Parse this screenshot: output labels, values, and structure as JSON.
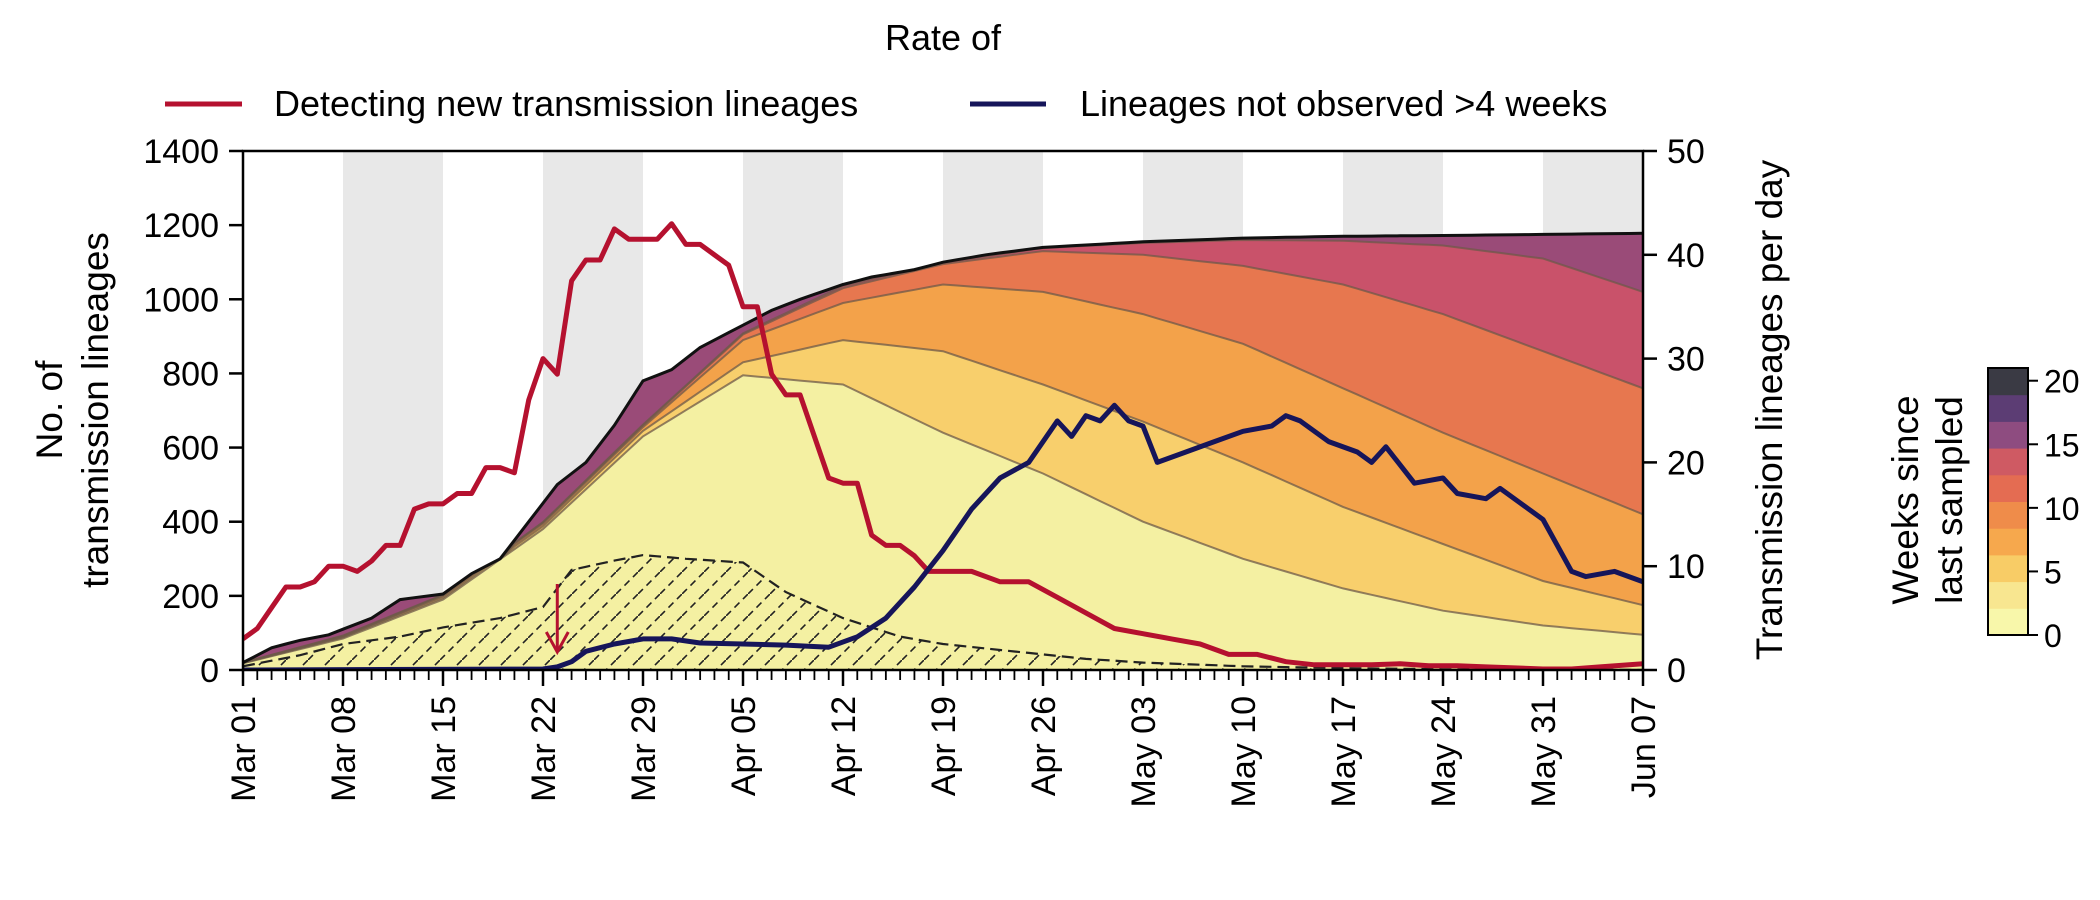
{
  "legend": {
    "heading": "Rate of",
    "items": [
      {
        "label": "Detecting new transmission lineages",
        "color": "#b5112f"
      },
      {
        "label": "Lineages not observed >4 weeks",
        "color": "#16155a"
      }
    ]
  },
  "colorbar": {
    "label_line1": "Weeks since",
    "label_line2": "last sampled",
    "ticks": [
      0,
      5,
      10,
      15,
      20
    ],
    "max": 21,
    "colors": [
      "#f8f7aa",
      "#f8e690",
      "#f8cc66",
      "#f6a84d",
      "#ef8c4a",
      "#e46c52",
      "#cf5a63",
      "#8e4c80",
      "#5c3d74",
      "#3a3a44"
    ]
  },
  "chart_data": {
    "type": "area",
    "x_tick_labels": [
      "Mar 01",
      "Mar 08",
      "Mar 15",
      "Mar 22",
      "Mar 29",
      "Apr 05",
      "Apr 12",
      "Apr 19",
      "Apr 26",
      "May 03",
      "May 10",
      "May 17",
      "May 24",
      "May 31",
      "Jun 07"
    ],
    "xlim": [
      "Mar 01",
      "Jun 07"
    ],
    "y_left": {
      "label_line1": "No. of",
      "label_line2": "transmission lineages",
      "ticks": [
        0,
        200,
        400,
        600,
        800,
        1000,
        1200,
        1400
      ],
      "range": [
        0,
        1400
      ]
    },
    "y_right": {
      "label": "Transmission lineages per day",
      "ticks": [
        0,
        10,
        20,
        30,
        40,
        50
      ],
      "range": [
        0,
        50
      ]
    },
    "weekly_shading": true,
    "total_lineages": {
      "x": [
        "Mar 01",
        "Mar 03",
        "Mar 05",
        "Mar 07",
        "Mar 10",
        "Mar 12",
        "Mar 15",
        "Mar 17",
        "Mar 19",
        "Mar 21",
        "Mar 23",
        "Mar 25",
        "Mar 27",
        "Mar 29",
        "Mar 31",
        "Apr 02",
        "Apr 04",
        "Apr 07",
        "Apr 09",
        "Apr 12",
        "Apr 14",
        "Apr 17",
        "Apr 19",
        "Apr 22",
        "Apr 26",
        "May 03",
        "May 10",
        "May 17",
        "May 24",
        "May 31",
        "Jun 07"
      ],
      "y": [
        20,
        60,
        80,
        95,
        140,
        190,
        205,
        260,
        300,
        400,
        500,
        560,
        660,
        780,
        810,
        870,
        910,
        970,
        1000,
        1040,
        1060,
        1080,
        1100,
        1120,
        1140,
        1155,
        1165,
        1170,
        1172,
        1175,
        1178
      ]
    },
    "age_bands": [
      {
        "weeks": 0,
        "x": [
          "Mar 01",
          "Mar 08",
          "Mar 15",
          "Mar 22",
          "Mar 29",
          "Apr 05",
          "Apr 12",
          "Apr 19",
          "Apr 26",
          "May 03",
          "May 10",
          "May 17",
          "May 24",
          "May 31",
          "Jun 07"
        ],
        "y": [
          18,
          85,
          190,
          380,
          630,
          795,
          770,
          640,
          530,
          400,
          300,
          220,
          160,
          120,
          95
        ]
      },
      {
        "weeks": 2,
        "x": [
          "Mar 01",
          "Mar 08",
          "Mar 15",
          "Mar 22",
          "Mar 29",
          "Apr 05",
          "Apr 12",
          "Apr 19",
          "Apr 26",
          "May 03",
          "May 10",
          "May 17",
          "May 24",
          "May 31",
          "Jun 07"
        ],
        "y": [
          19,
          88,
          195,
          388,
          645,
          830,
          890,
          860,
          770,
          670,
          560,
          440,
          340,
          240,
          175
        ]
      },
      {
        "weeks": 4,
        "x": [
          "Mar 01",
          "Mar 08",
          "Mar 15",
          "Mar 22",
          "Mar 29",
          "Apr 05",
          "Apr 12",
          "Apr 19",
          "Apr 26",
          "May 03",
          "May 10",
          "May 17",
          "May 24",
          "May 31",
          "Jun 07"
        ],
        "y": [
          20,
          90,
          200,
          395,
          655,
          890,
          990,
          1040,
          1020,
          960,
          880,
          760,
          640,
          530,
          420
        ]
      },
      {
        "weeks": 8,
        "x": [
          "Mar 01",
          "Mar 08",
          "Mar 15",
          "Mar 22",
          "Mar 29",
          "Apr 05",
          "Apr 12",
          "Apr 19",
          "Apr 26",
          "May 03",
          "May 10",
          "May 17",
          "May 24",
          "May 31",
          "Jun 07"
        ],
        "y": [
          20,
          92,
          202,
          398,
          660,
          905,
          1030,
          1095,
          1130,
          1120,
          1090,
          1040,
          960,
          860,
          760
        ]
      },
      {
        "weeks": 12,
        "x": [
          "Mar 01",
          "Mar 08",
          "Mar 15",
          "Mar 22",
          "Mar 29",
          "Apr 05",
          "Apr 12",
          "Apr 19",
          "Apr 26",
          "May 03",
          "May 10",
          "May 17",
          "May 24",
          "May 31",
          "Jun 07"
        ],
        "y": [
          20,
          93,
          203,
          399,
          662,
          908,
          1036,
          1100,
          1138,
          1152,
          1160,
          1158,
          1145,
          1110,
          1020
        ]
      }
    ],
    "hatched_region": {
      "x": [
        "Mar 01",
        "Mar 05",
        "Mar 08",
        "Mar 12",
        "Mar 15",
        "Mar 19",
        "Mar 22",
        "Mar 24",
        "Mar 27",
        "Mar 29",
        "Apr 01",
        "Apr 05",
        "Apr 08",
        "Apr 12",
        "Apr 16",
        "Apr 19",
        "Apr 24",
        "Apr 29",
        "May 03",
        "May 10",
        "May 17",
        "May 24",
        "May 31",
        "Jun 07"
      ],
      "y": [
        10,
        40,
        70,
        90,
        115,
        140,
        170,
        270,
        295,
        310,
        300,
        290,
        210,
        140,
        90,
        70,
        50,
        30,
        20,
        10,
        5,
        2,
        1,
        0
      ]
    },
    "series": [
      {
        "name": "Detecting new transmission lineages",
        "axis": "right",
        "color": "#b5112f",
        "x": [
          "Mar 01",
          "Mar 02",
          "Mar 03",
          "Mar 04",
          "Mar 05",
          "Mar 06",
          "Mar 07",
          "Mar 08",
          "Mar 09",
          "Mar 10",
          "Mar 11",
          "Mar 12",
          "Mar 13",
          "Mar 14",
          "Mar 15",
          "Mar 16",
          "Mar 17",
          "Mar 18",
          "Mar 19",
          "Mar 20",
          "Mar 21",
          "Mar 22",
          "Mar 23",
          "Mar 24",
          "Mar 25",
          "Mar 26",
          "Mar 27",
          "Mar 28",
          "Mar 29",
          "Mar 30",
          "Mar 31",
          "Apr 01",
          "Apr 02",
          "Apr 03",
          "Apr 04",
          "Apr 05",
          "Apr 06",
          "Apr 07",
          "Apr 08",
          "Apr 09",
          "Apr 10",
          "Apr 11",
          "Apr 12",
          "Apr 13",
          "Apr 14",
          "Apr 15",
          "Apr 16",
          "Apr 17",
          "Apr 18",
          "Apr 19",
          "Apr 21",
          "Apr 23",
          "Apr 25",
          "Apr 27",
          "Apr 29",
          "May 01",
          "May 03",
          "May 05",
          "May 07",
          "May 09",
          "May 11",
          "May 13",
          "May 15",
          "May 17",
          "May 19",
          "May 21",
          "May 23",
          "May 25",
          "May 27",
          "May 29",
          "May 31",
          "Jun 02",
          "Jun 04",
          "Jun 07"
        ],
        "y": [
          3,
          4,
          6,
          8,
          8,
          8.5,
          10,
          10,
          9.5,
          10.5,
          12,
          12,
          15.5,
          16,
          16,
          17,
          17,
          19.5,
          19.5,
          19,
          26,
          30,
          28.5,
          37.5,
          39.5,
          39.5,
          42.5,
          41.5,
          41.5,
          41.5,
          43,
          41,
          41,
          40,
          39,
          35,
          35,
          28.5,
          26.5,
          26.5,
          22.5,
          18.5,
          18,
          18,
          13,
          12,
          12,
          11,
          9.5,
          9.5,
          9.5,
          8.5,
          8.5,
          7,
          5.5,
          4,
          3.5,
          3,
          2.5,
          1.5,
          1.5,
          0.8,
          0.5,
          0.5,
          0.5,
          0.6,
          0.4,
          0.4,
          0.3,
          0.2,
          0.1,
          0.1,
          0.3,
          0.6
        ]
      },
      {
        "name": "Lineages not observed >4 weeks",
        "axis": "right",
        "color": "#16155a",
        "x": [
          "Mar 01",
          "Mar 22",
          "Mar 23",
          "Mar 24",
          "Mar 25",
          "Mar 27",
          "Mar 29",
          "Mar 31",
          "Apr 02",
          "Apr 05",
          "Apr 08",
          "Apr 11",
          "Apr 13",
          "Apr 15",
          "Apr 17",
          "Apr 19",
          "Apr 21",
          "Apr 23",
          "Apr 25",
          "Apr 27",
          "Apr 28",
          "Apr 29",
          "Apr 30",
          "May 01",
          "May 02",
          "May 03",
          "May 04",
          "May 06",
          "May 08",
          "May 10",
          "May 12",
          "May 13",
          "May 14",
          "May 16",
          "May 18",
          "May 19",
          "May 20",
          "May 22",
          "May 24",
          "May 25",
          "May 27",
          "May 28",
          "May 30",
          "May 31",
          "Jun 01",
          "Jun 02",
          "Jun 03",
          "Jun 05",
          "Jun 07"
        ],
        "y": [
          0,
          0.1,
          0.3,
          0.8,
          1.8,
          2.5,
          3,
          3,
          2.6,
          2.5,
          2.4,
          2.2,
          3.2,
          5,
          8,
          11.5,
          15.5,
          18.5,
          20,
          24,
          22.5,
          24.5,
          24,
          25.5,
          24,
          23.5,
          20,
          21,
          22,
          23,
          23.5,
          24.5,
          24,
          22,
          21,
          20,
          21.5,
          18,
          18.5,
          17,
          16.5,
          17.5,
          15.5,
          14.5,
          12,
          9.5,
          9,
          9.5,
          8.5
        ]
      }
    ],
    "annotation": {
      "type": "arrow",
      "x": "Mar 23",
      "color": "#b5112f"
    }
  }
}
